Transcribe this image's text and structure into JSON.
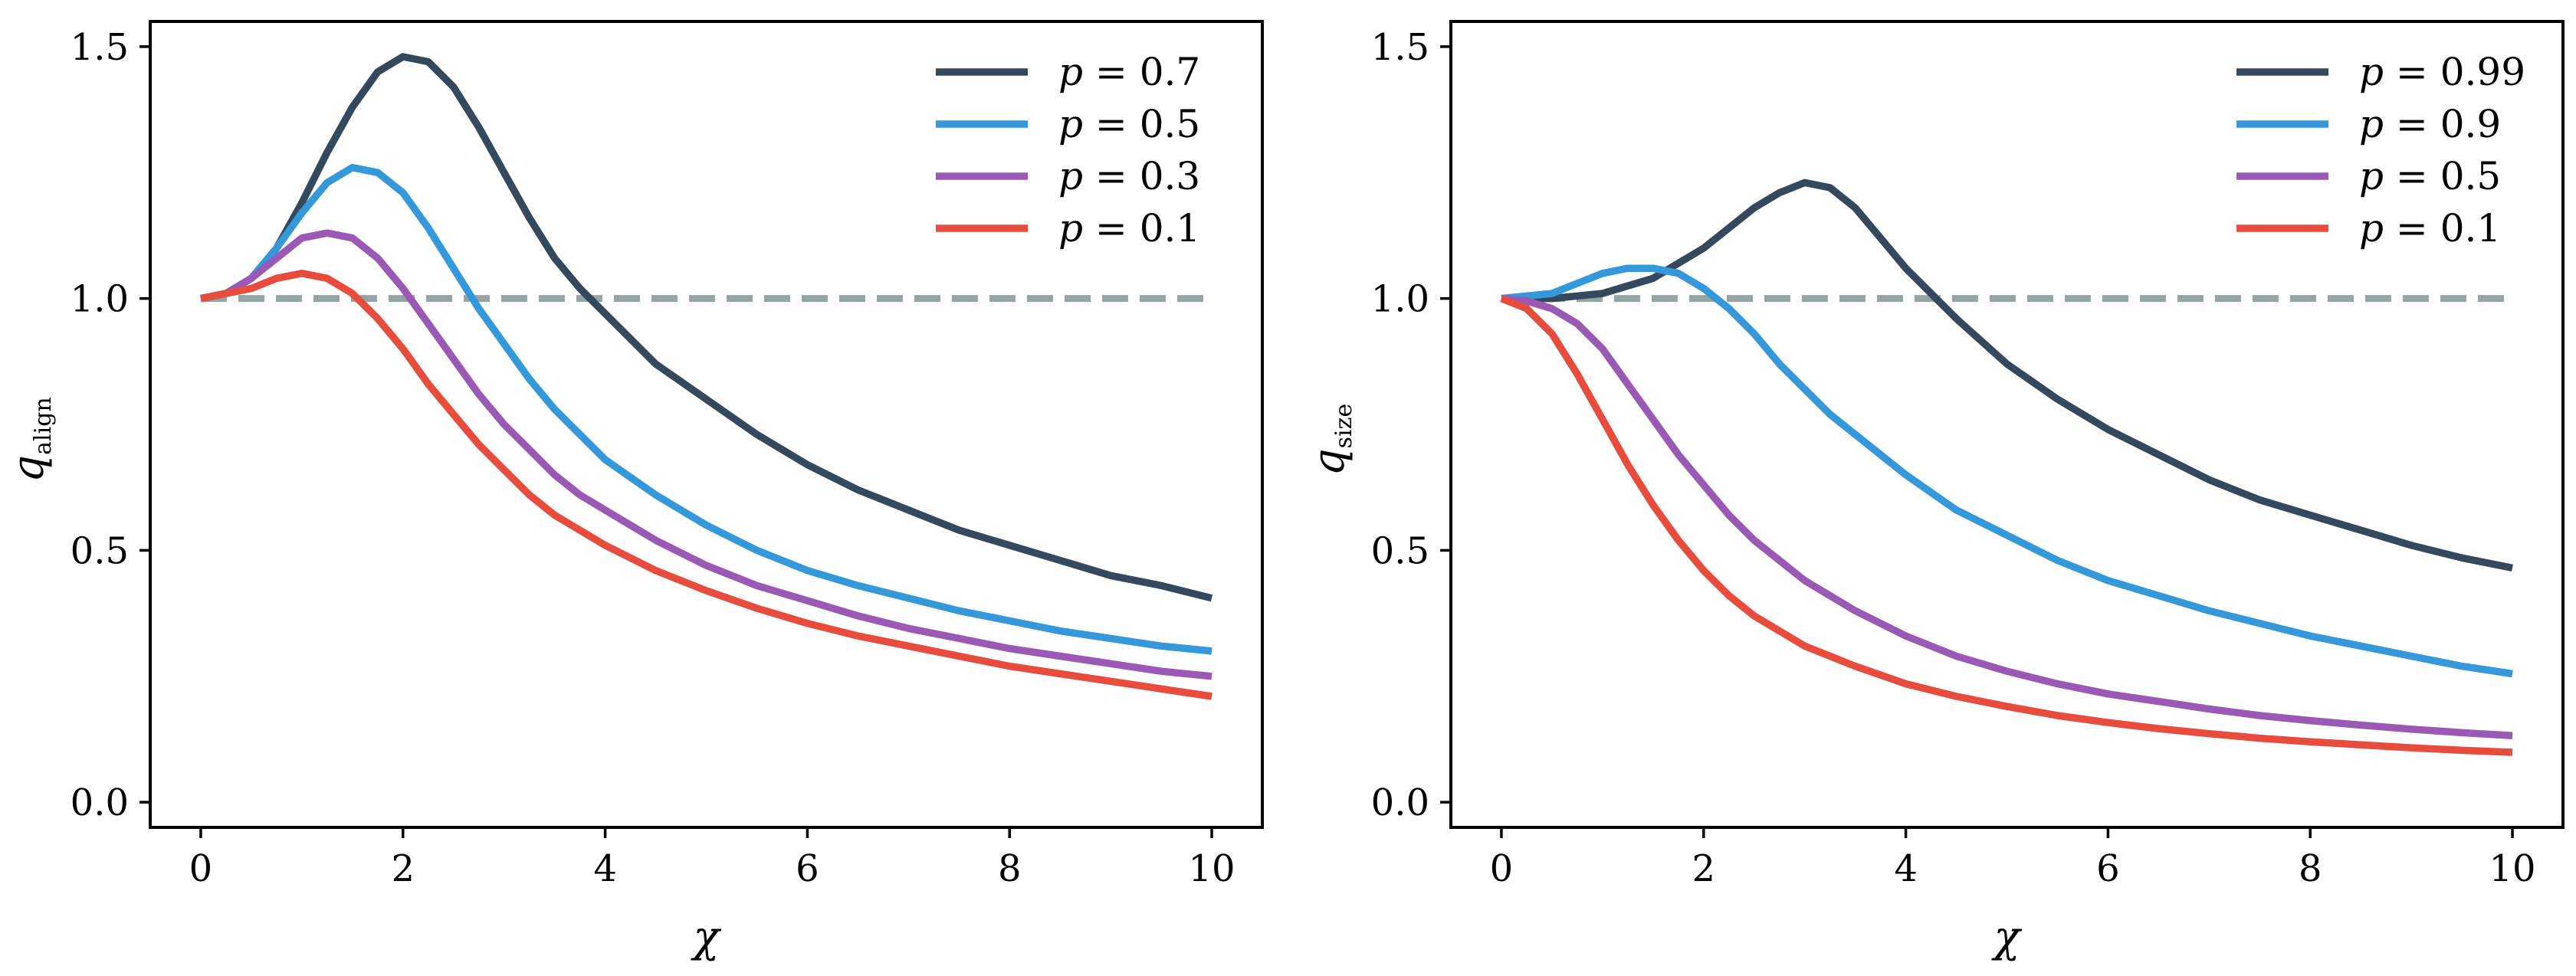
{
  "colors": {
    "dark": "#34495e",
    "blue": "#3498db",
    "purple": "#9b59b6",
    "red": "#e74c3c",
    "reference": "#95a5a6",
    "axes": "#000000"
  },
  "chart_data": [
    {
      "type": "line",
      "xlabel": "χ",
      "ylabel_main": "q",
      "ylabel_sub": "align",
      "xlim": [
        -0.5,
        10.5
      ],
      "ylim": [
        -0.05,
        1.55
      ],
      "xticks": [
        0,
        2,
        4,
        6,
        8,
        10
      ],
      "xtick_labels": [
        "0",
        "2",
        "4",
        "6",
        "8",
        "10"
      ],
      "yticks": [
        0.0,
        0.5,
        1.0,
        1.5
      ],
      "ytick_labels": [
        "0.0",
        "0.5",
        "1.0",
        "1.5"
      ],
      "grid": false,
      "legend_position": "top-right",
      "reference_line": {
        "y": 1.0,
        "x_range": [
          0,
          10
        ],
        "style": "dashed",
        "color": "#95a5a6"
      },
      "series": [
        {
          "name": "p = 0.7",
          "symbol": "p",
          "value": "0.7",
          "color": "#34495e",
          "x": [
            0,
            0.25,
            0.5,
            0.75,
            1.0,
            1.25,
            1.5,
            1.75,
            2.0,
            2.25,
            2.5,
            2.75,
            3.0,
            3.25,
            3.5,
            3.75,
            4.0,
            4.5,
            5.0,
            5.5,
            6.0,
            6.5,
            7.0,
            7.5,
            8.0,
            8.5,
            9.0,
            9.5,
            10.0
          ],
          "y": [
            1.0,
            1.01,
            1.04,
            1.1,
            1.19,
            1.29,
            1.38,
            1.45,
            1.48,
            1.47,
            1.42,
            1.34,
            1.25,
            1.16,
            1.08,
            1.02,
            0.97,
            0.87,
            0.8,
            0.73,
            0.67,
            0.62,
            0.58,
            0.54,
            0.51,
            0.48,
            0.45,
            0.43,
            0.405
          ]
        },
        {
          "name": "p = 0.5",
          "symbol": "p",
          "value": "0.5",
          "color": "#3498db",
          "x": [
            0,
            0.25,
            0.5,
            0.75,
            1.0,
            1.25,
            1.5,
            1.75,
            2.0,
            2.25,
            2.5,
            2.75,
            3.0,
            3.25,
            3.5,
            3.75,
            4.0,
            4.5,
            5.0,
            5.5,
            6.0,
            6.5,
            7.0,
            7.5,
            8.0,
            8.5,
            9.0,
            9.5,
            10.0
          ],
          "y": [
            1.0,
            1.01,
            1.04,
            1.1,
            1.17,
            1.23,
            1.26,
            1.25,
            1.21,
            1.14,
            1.06,
            0.98,
            0.91,
            0.84,
            0.78,
            0.73,
            0.68,
            0.61,
            0.55,
            0.5,
            0.46,
            0.43,
            0.405,
            0.38,
            0.36,
            0.34,
            0.325,
            0.31,
            0.3
          ]
        },
        {
          "name": "p = 0.3",
          "symbol": "p",
          "value": "0.3",
          "color": "#9b59b6",
          "x": [
            0,
            0.25,
            0.5,
            0.75,
            1.0,
            1.25,
            1.5,
            1.75,
            2.0,
            2.25,
            2.5,
            2.75,
            3.0,
            3.25,
            3.5,
            3.75,
            4.0,
            4.5,
            5.0,
            5.5,
            6.0,
            6.5,
            7.0,
            7.5,
            8.0,
            8.5,
            9.0,
            9.5,
            10.0
          ],
          "y": [
            1.0,
            1.01,
            1.04,
            1.08,
            1.12,
            1.13,
            1.12,
            1.08,
            1.02,
            0.95,
            0.88,
            0.81,
            0.75,
            0.7,
            0.65,
            0.61,
            0.58,
            0.52,
            0.47,
            0.43,
            0.4,
            0.37,
            0.345,
            0.325,
            0.305,
            0.29,
            0.275,
            0.26,
            0.25
          ]
        },
        {
          "name": "p = 0.1",
          "symbol": "p",
          "value": "0.1",
          "color": "#e74c3c",
          "x": [
            0,
            0.25,
            0.5,
            0.75,
            1.0,
            1.25,
            1.5,
            1.75,
            2.0,
            2.25,
            2.5,
            2.75,
            3.0,
            3.25,
            3.5,
            3.75,
            4.0,
            4.5,
            5.0,
            5.5,
            6.0,
            6.5,
            7.0,
            7.5,
            8.0,
            8.5,
            9.0,
            9.5,
            10.0
          ],
          "y": [
            1.0,
            1.01,
            1.02,
            1.04,
            1.05,
            1.04,
            1.01,
            0.96,
            0.9,
            0.83,
            0.77,
            0.71,
            0.66,
            0.61,
            0.57,
            0.54,
            0.51,
            0.46,
            0.42,
            0.385,
            0.355,
            0.33,
            0.31,
            0.29,
            0.27,
            0.255,
            0.24,
            0.225,
            0.21
          ]
        }
      ]
    },
    {
      "type": "line",
      "xlabel": "χ",
      "ylabel_main": "q",
      "ylabel_sub": "size",
      "xlim": [
        -0.5,
        10.5
      ],
      "ylim": [
        -0.05,
        1.55
      ],
      "xticks": [
        0,
        2,
        4,
        6,
        8,
        10
      ],
      "xtick_labels": [
        "0",
        "2",
        "4",
        "6",
        "8",
        "10"
      ],
      "yticks": [
        0.0,
        0.5,
        1.0,
        1.5
      ],
      "ytick_labels": [
        "0.0",
        "0.5",
        "1.0",
        "1.5"
      ],
      "grid": false,
      "legend_position": "top-right",
      "reference_line": {
        "y": 1.0,
        "x_range": [
          0,
          10
        ],
        "style": "dashed",
        "color": "#95a5a6"
      },
      "series": [
        {
          "name": "p = 0.99",
          "symbol": "p",
          "value": "0.99",
          "color": "#34495e",
          "x": [
            0,
            0.5,
            1.0,
            1.5,
            2.0,
            2.5,
            2.75,
            3.0,
            3.25,
            3.5,
            3.75,
            4.0,
            4.25,
            4.5,
            5.0,
            5.5,
            6.0,
            6.5,
            7.0,
            7.5,
            8.0,
            8.5,
            9.0,
            9.5,
            10.0
          ],
          "y": [
            1.0,
            1.0,
            1.01,
            1.04,
            1.1,
            1.18,
            1.21,
            1.23,
            1.22,
            1.18,
            1.12,
            1.06,
            1.01,
            0.96,
            0.87,
            0.8,
            0.74,
            0.69,
            0.64,
            0.6,
            0.57,
            0.54,
            0.51,
            0.485,
            0.465
          ]
        },
        {
          "name": "p = 0.9",
          "symbol": "p",
          "value": "0.9",
          "color": "#3498db",
          "x": [
            0,
            0.5,
            0.75,
            1.0,
            1.25,
            1.5,
            1.75,
            2.0,
            2.25,
            2.5,
            2.75,
            3.0,
            3.25,
            3.5,
            4.0,
            4.5,
            5.0,
            5.5,
            6.0,
            6.5,
            7.0,
            7.5,
            8.0,
            8.5,
            9.0,
            9.5,
            10.0
          ],
          "y": [
            1.0,
            1.01,
            1.03,
            1.05,
            1.06,
            1.06,
            1.05,
            1.02,
            0.98,
            0.93,
            0.87,
            0.82,
            0.77,
            0.73,
            0.65,
            0.58,
            0.53,
            0.48,
            0.44,
            0.41,
            0.38,
            0.355,
            0.33,
            0.31,
            0.29,
            0.27,
            0.255
          ]
        },
        {
          "name": "p = 0.5",
          "symbol": "p",
          "value": "0.5",
          "color": "#9b59b6",
          "x": [
            0,
            0.25,
            0.5,
            0.75,
            1.0,
            1.25,
            1.5,
            1.75,
            2.0,
            2.25,
            2.5,
            2.75,
            3.0,
            3.5,
            4.0,
            4.5,
            5.0,
            5.5,
            6.0,
            6.5,
            7.0,
            7.5,
            8.0,
            8.5,
            9.0,
            9.5,
            10.0
          ],
          "y": [
            1.0,
            0.995,
            0.98,
            0.95,
            0.9,
            0.83,
            0.76,
            0.69,
            0.63,
            0.57,
            0.52,
            0.48,
            0.44,
            0.38,
            0.33,
            0.29,
            0.26,
            0.235,
            0.215,
            0.2,
            0.185,
            0.172,
            0.162,
            0.153,
            0.145,
            0.138,
            0.132
          ]
        },
        {
          "name": "p = 0.1",
          "symbol": "p",
          "value": "0.1",
          "color": "#e74c3c",
          "x": [
            0,
            0.25,
            0.5,
            0.75,
            1.0,
            1.25,
            1.5,
            1.75,
            2.0,
            2.25,
            2.5,
            2.75,
            3.0,
            3.5,
            4.0,
            4.5,
            5.0,
            5.5,
            6.0,
            6.5,
            7.0,
            7.5,
            8.0,
            8.5,
            9.0,
            9.5,
            10.0
          ],
          "y": [
            1.0,
            0.98,
            0.93,
            0.85,
            0.76,
            0.67,
            0.59,
            0.52,
            0.46,
            0.41,
            0.37,
            0.34,
            0.31,
            0.27,
            0.235,
            0.21,
            0.19,
            0.172,
            0.158,
            0.146,
            0.136,
            0.127,
            0.12,
            0.114,
            0.108,
            0.103,
            0.099
          ]
        }
      ]
    }
  ]
}
